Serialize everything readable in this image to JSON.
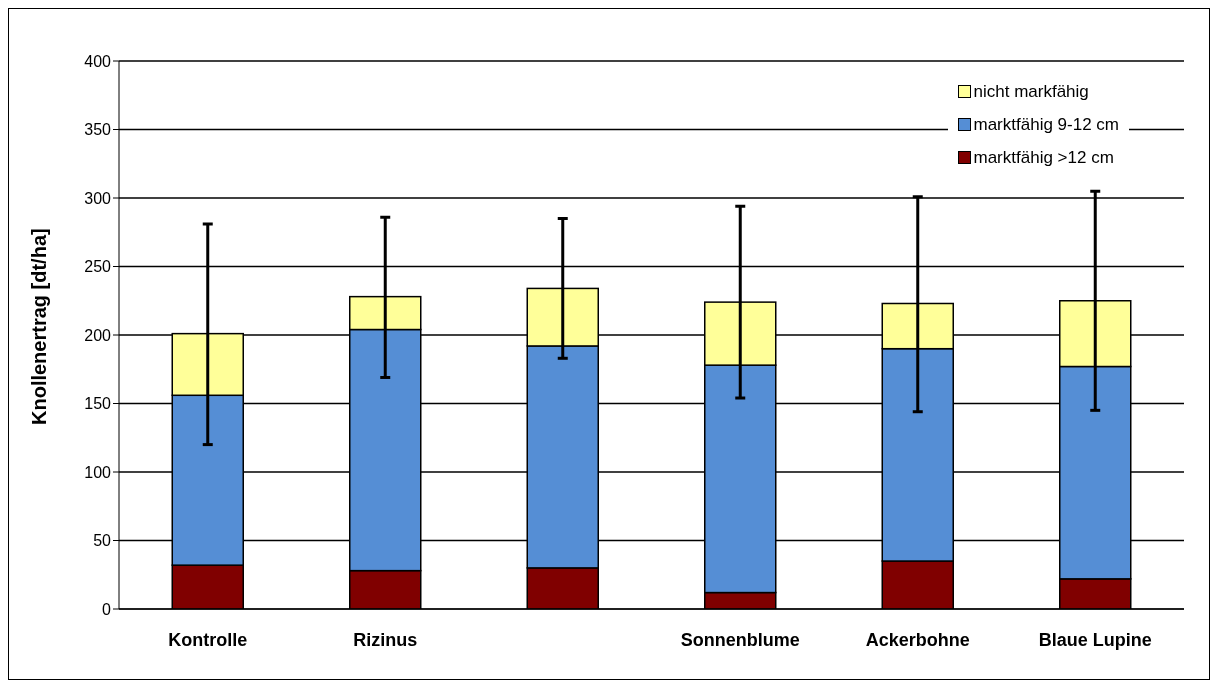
{
  "chart_data": {
    "type": "bar",
    "stacked": true,
    "ylabel": "Knollenertrag [dt/ha]",
    "categories": [
      "Kontrolle",
      "Rizinus",
      null,
      "Sonnenblume",
      "Ackerbohne",
      "Blaue Lupine"
    ],
    "series": [
      {
        "name": "marktfähig >12 cm",
        "color": "#800000",
        "values": [
          32,
          28,
          30,
          12,
          35,
          22
        ]
      },
      {
        "name": "marktfähig 9-12 cm",
        "color": "#558ed5",
        "values": [
          124,
          176,
          162,
          166,
          155,
          155
        ]
      },
      {
        "name": "nicht markfähig",
        "color": "#ffff99",
        "values": [
          45,
          24,
          42,
          46,
          33,
          48
        ],
        "errors": [
          [
            120,
            281
          ],
          [
            169,
            286
          ],
          [
            183,
            285
          ],
          [
            154,
            294
          ],
          [
            144,
            301
          ],
          [
            145,
            305
          ]
        ]
      }
    ],
    "ylim": [
      0,
      400
    ],
    "yticks": [
      0,
      50,
      100,
      150,
      200,
      250,
      300,
      350,
      400
    ],
    "grid": "y",
    "legend": "top right"
  }
}
